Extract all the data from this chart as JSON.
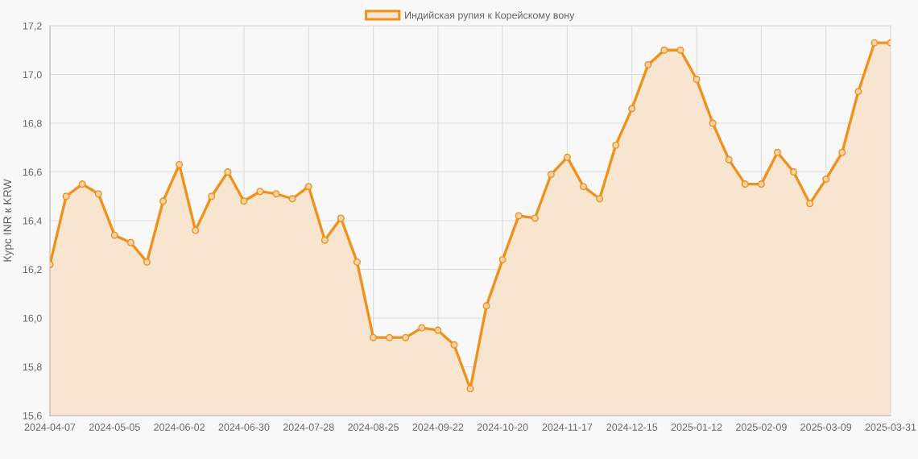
{
  "chart_data": {
    "type": "area",
    "ylabel": "Курс INR к KRW",
    "categories": [
      "2024-04-07",
      null,
      null,
      null,
      "2024-05-05",
      null,
      null,
      null,
      "2024-06-02",
      null,
      null,
      null,
      "2024-06-30",
      null,
      null,
      null,
      "2024-07-28",
      null,
      null,
      null,
      "2024-08-25",
      null,
      null,
      null,
      "2024-09-22",
      null,
      null,
      null,
      "2024-10-20",
      null,
      null,
      null,
      "2024-11-17",
      null,
      null,
      null,
      "2024-12-15",
      null,
      null,
      null,
      "2025-01-12",
      null,
      null,
      null,
      "2025-02-09",
      null,
      null,
      null,
      "2025-03-09",
      null,
      null,
      null,
      "2025-03-31"
    ],
    "series": [
      {
        "name": "Индийская рупия к Корейскому вону",
        "color": "#f0911c",
        "values": [
          16.22,
          16.5,
          16.55,
          16.51,
          16.34,
          16.31,
          16.23,
          16.48,
          16.63,
          16.36,
          16.5,
          16.6,
          16.48,
          16.52,
          16.51,
          16.49,
          16.54,
          16.32,
          16.41,
          16.23,
          15.92,
          15.92,
          15.92,
          15.96,
          15.95,
          15.89,
          15.71,
          16.05,
          16.24,
          16.42,
          16.41,
          16.59,
          16.66,
          16.54,
          16.49,
          16.71,
          16.86,
          17.04,
          17.1,
          17.1,
          16.98,
          16.8,
          16.65,
          16.55,
          16.55,
          16.68,
          16.6,
          16.47,
          16.57,
          16.68,
          16.93,
          17.13,
          17.13
        ]
      }
    ],
    "ylim": [
      15.6,
      17.2
    ],
    "yticks": [
      {
        "value": 15.6,
        "label": "15,6"
      },
      {
        "value": 15.8,
        "label": "15,8"
      },
      {
        "value": 16.0,
        "label": "16,0"
      },
      {
        "value": 16.2,
        "label": "16,2"
      },
      {
        "value": 16.4,
        "label": "16,4"
      },
      {
        "value": 16.6,
        "label": "16,6"
      },
      {
        "value": 16.8,
        "label": "16,8"
      },
      {
        "value": 17.0,
        "label": "17,0"
      },
      {
        "value": 17.2,
        "label": "17,2"
      }
    ],
    "grid": true,
    "legend": "top",
    "marker": "circle",
    "line_style": "solid"
  }
}
